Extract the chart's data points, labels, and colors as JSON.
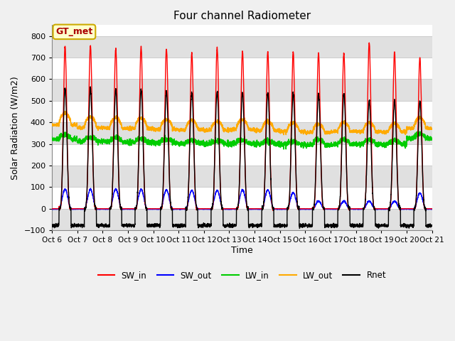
{
  "title": "Four channel Radiometer",
  "xlabel": "Time",
  "ylabel": "Solar Radiation (W/m2)",
  "ylim": [
    -100,
    850
  ],
  "yticks": [
    -100,
    0,
    100,
    200,
    300,
    400,
    500,
    600,
    700,
    800
  ],
  "start_day": 6,
  "end_day": 21,
  "num_days": 15,
  "hours_per_day": 24,
  "dt_hours": 0.1,
  "SW_in_peak": [
    750,
    755,
    740,
    748,
    740,
    720,
    745,
    728,
    728,
    725,
    720,
    720,
    770,
    725,
    700
  ],
  "SW_out_peak": [
    90,
    90,
    92,
    90,
    88,
    85,
    85,
    87,
    87,
    75,
    35,
    35,
    35,
    35,
    73
  ],
  "LW_in_base": [
    322,
    312,
    310,
    308,
    306,
    303,
    300,
    303,
    300,
    298,
    295,
    298,
    300,
    298,
    325
  ],
  "LW_in_amp": [
    20,
    18,
    18,
    16,
    15,
    14,
    14,
    14,
    13,
    13,
    25,
    20,
    18,
    18,
    20
  ],
  "LW_out_base": [
    388,
    375,
    373,
    372,
    368,
    366,
    363,
    368,
    362,
    358,
    353,
    358,
    358,
    356,
    372
  ],
  "LW_out_amp": [
    55,
    50,
    48,
    48,
    45,
    44,
    42,
    44,
    42,
    40,
    38,
    40,
    40,
    38,
    48
  ],
  "Rnet_peak": [
    558,
    560,
    552,
    552,
    543,
    538,
    540,
    538,
    538,
    532,
    530,
    532,
    500,
    498,
    498
  ],
  "Rnet_night": [
    -78,
    -78,
    -78,
    -78,
    -78,
    -78,
    -78,
    -78,
    -78,
    -78,
    -78,
    -78,
    -78,
    -78,
    -78
  ],
  "colors": {
    "SW_in": "#ff0000",
    "SW_out": "#0000ff",
    "LW_in": "#00cc00",
    "LW_out": "#ffaa00",
    "Rnet": "#000000"
  },
  "linewidths": {
    "SW_in": 1.0,
    "SW_out": 1.0,
    "LW_in": 1.2,
    "LW_out": 1.2,
    "Rnet": 1.0
  },
  "legend_label": "GT_met",
  "bg_color": "#f0f0f0",
  "plot_bg": "#ffffff",
  "band_color": "#e0e0e0",
  "grid_color": "#cccccc",
  "sunrise_hour": 6.8,
  "sunset_hour": 18.2,
  "peak_sharpness": 5.0
}
